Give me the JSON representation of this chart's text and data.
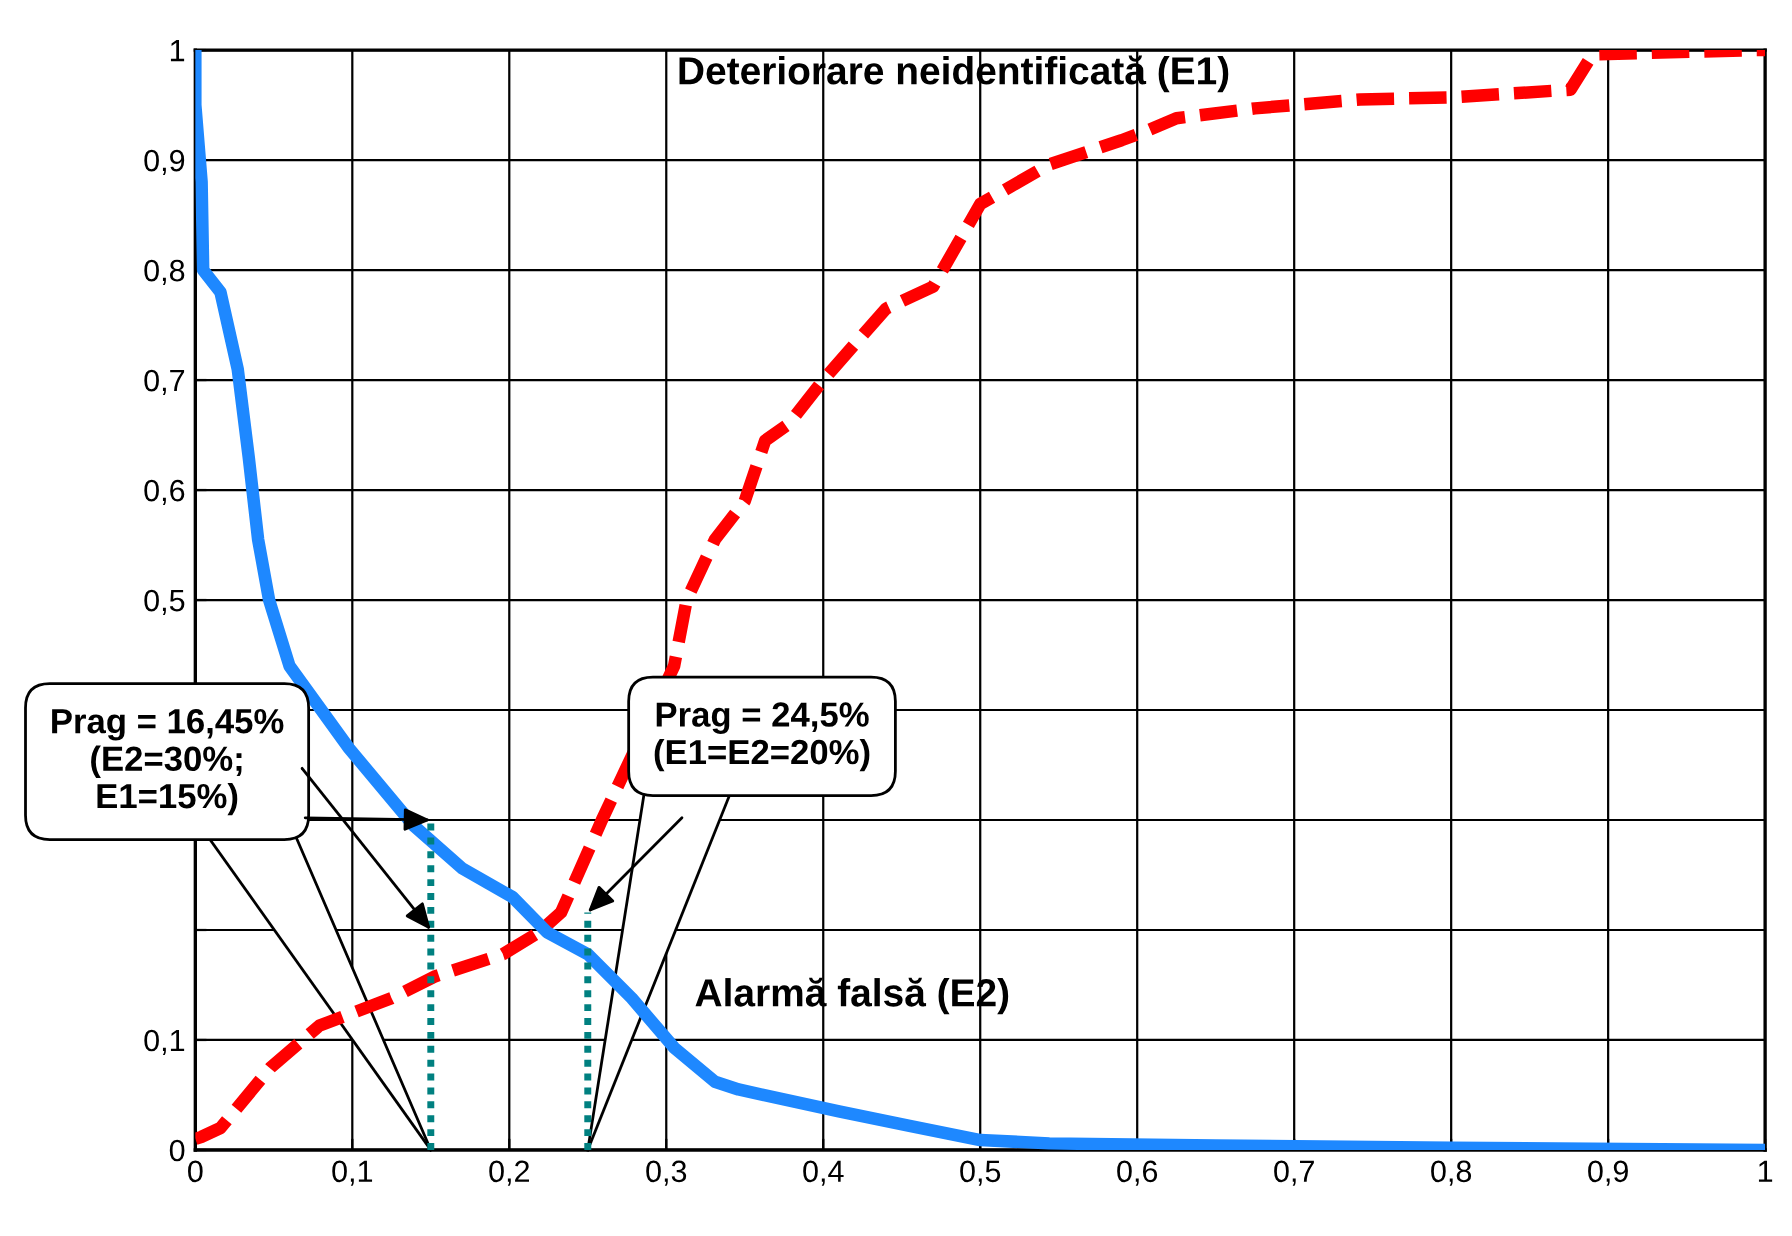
{
  "chart_data": {
    "type": "line",
    "annotations": [
      {
        "text": "Prag = 16,45%\n(E2=30%;\nE1=15%)",
        "x": 0.15,
        "y": 0
      },
      {
        "text": "Prag = 24,5%\n(E1=E2=20%)",
        "x": 0.25,
        "y": 0
      }
    ],
    "series": [
      {
        "name": "Deteriorare neidentificată (E1)",
        "color": "#ff0000",
        "line_style": "dashed",
        "x": [
          0,
          0.004,
          0.016,
          0.048,
          0.079,
          0.125,
          0.153,
          0.196,
          0.219,
          0.233,
          0.259,
          0.305,
          0.313,
          0.331,
          0.35,
          0.363,
          0.378,
          0.4,
          0.44,
          0.47,
          0.5,
          0.544,
          0.59,
          0.607,
          0.625,
          0.675,
          0.742,
          0.8,
          0.876,
          0.89,
          0.994,
          1
        ],
        "values": [
          0.01,
          0.012,
          0.02,
          0.075,
          0.113,
          0.138,
          0.158,
          0.178,
          0.198,
          0.216,
          0.3,
          0.44,
          0.5,
          0.555,
          0.59,
          0.645,
          0.66,
          0.7,
          0.765,
          0.785,
          0.86,
          0.896,
          0.918,
          0.927,
          0.938,
          0.947,
          0.955,
          0.957,
          0.964,
          0.996,
          1,
          1
        ]
      },
      {
        "name": "Alarmă falsă (E2)",
        "color": "#1e88ff",
        "line_style": "solid",
        "x": [
          0,
          0,
          0.004,
          0.005,
          0.016,
          0.027,
          0.034,
          0.04,
          0.047,
          0.06,
          0.098,
          0.139,
          0.17,
          0.202,
          0.224,
          0.25,
          0.278,
          0.305,
          0.331,
          0.346,
          0.41,
          0.455,
          0.5,
          0.544,
          0.65,
          0.8,
          1
        ],
        "values": [
          1,
          0.95,
          0.88,
          0.8,
          0.78,
          0.71,
          0.63,
          0.555,
          0.5,
          0.44,
          0.365,
          0.295,
          0.256,
          0.23,
          0.198,
          0.178,
          0.138,
          0.093,
          0.062,
          0.055,
          0.035,
          0.022,
          0.009,
          0.006,
          0.004,
          0.002,
          0
        ]
      },
      {
        "color": "#008080",
        "line_style": "dotted",
        "x": [
          0.15,
          0.15,
          0.15
        ],
        "values": [
          0,
          0.2,
          0.3
        ]
      },
      {
        "color": "#008080",
        "line_style": "dotted",
        "x": [
          0.25,
          0.25
        ],
        "values": [
          0,
          0.216
        ]
      }
    ],
    "xlim": [
      0,
      1
    ],
    "ylim": [
      0,
      1
    ],
    "xticks": [
      0,
      {
        "value": 0.1,
        "label": "0,1"
      },
      {
        "value": 0.2,
        "label": "0,2"
      },
      {
        "value": 0.3,
        "label": "0,3"
      },
      {
        "value": 0.4,
        "label": "0,4"
      },
      {
        "value": 0.5,
        "label": "0,5"
      },
      {
        "value": 0.6,
        "label": "0,6"
      },
      {
        "value": 0.7,
        "label": "0,7"
      },
      {
        "value": 0.8,
        "label": "0,8"
      },
      {
        "value": 0.9,
        "label": "0,9"
      },
      1
    ],
    "yticks": [
      0,
      {
        "value": 0.1,
        "label": "0,1"
      },
      {
        "value": 0.2,
        "label": null
      },
      {
        "value": 0.3,
        "label": null
      },
      {
        "value": 0.4,
        "label": null
      },
      {
        "value": 0.5,
        "label": "0,5"
      },
      {
        "value": 0.6,
        "label": "0,6"
      },
      {
        "value": 0.7,
        "label": "0,7"
      },
      {
        "value": 0.8,
        "label": "0,8"
      },
      {
        "value": 0.9,
        "label": "0,9"
      },
      1
    ],
    "grid": true
  }
}
